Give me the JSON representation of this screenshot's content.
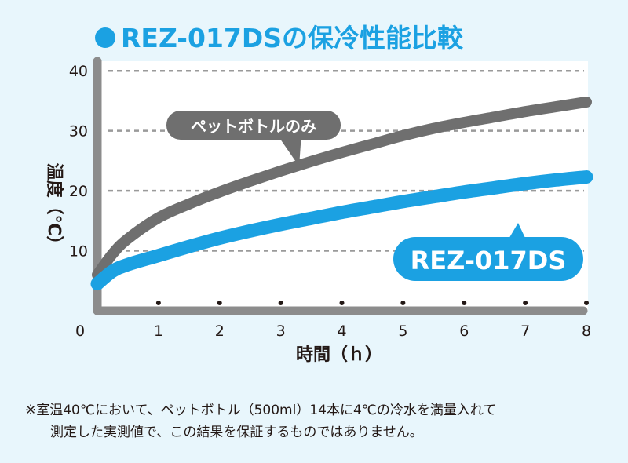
{
  "title": "REZ-017DSの保冷性能比較",
  "colors": {
    "background": "#e8f6fc",
    "plot_background": "#ffffff",
    "axis": "#8c8c8c",
    "grid": "#9a9a9a",
    "accent": "#1ba1e2",
    "bottle": "#6f6f6f",
    "text": "#231815"
  },
  "chart_data": {
    "type": "line",
    "title": "REZ-017DSの保冷性能比較",
    "xlabel": "時間（ｈ）",
    "ylabel": "温度（℃）",
    "xlim": [
      0,
      8
    ],
    "ylim": [
      0,
      45
    ],
    "x_ticks": [
      "0",
      "1",
      "2",
      "3",
      "4",
      "5",
      "6",
      "7",
      "8"
    ],
    "y_ticks": [
      "10",
      "20",
      "30",
      "40"
    ],
    "grid": "horizontal-dashed",
    "series": [
      {
        "name": "ペットボトルのみ",
        "color": "#6f6f6f",
        "x": [
          0,
          0.25,
          0.5,
          1,
          1.5,
          2,
          2.5,
          3,
          3.5,
          4,
          4.5,
          5,
          5.5,
          6,
          6.5,
          7,
          7.5,
          8
        ],
        "y": [
          6,
          9.5,
          12,
          15.5,
          17.8,
          19.8,
          21.6,
          23.3,
          24.9,
          26.4,
          27.8,
          29.2,
          30.4,
          31.4,
          32.3,
          33.2,
          34.0,
          34.8
        ]
      },
      {
        "name": "REZ-017DS",
        "color": "#1ba1e2",
        "x": [
          0,
          0.25,
          0.5,
          1,
          1.5,
          2,
          2.5,
          3,
          3.5,
          4,
          4.5,
          5,
          5.5,
          6,
          6.5,
          7,
          7.5,
          8
        ],
        "y": [
          4.5,
          6.6,
          7.7,
          9.2,
          10.7,
          12.1,
          13.3,
          14.4,
          15.4,
          16.4,
          17.3,
          18.2,
          19.0,
          19.8,
          20.5,
          21.2,
          21.8,
          22.3
        ]
      }
    ]
  },
  "note": {
    "line1": "※室温40℃において、ペットボトル（500ml）14本に4℃の冷水を満量入れて",
    "line2": "測定した実測値で、この結果を保証するものではありません。"
  }
}
